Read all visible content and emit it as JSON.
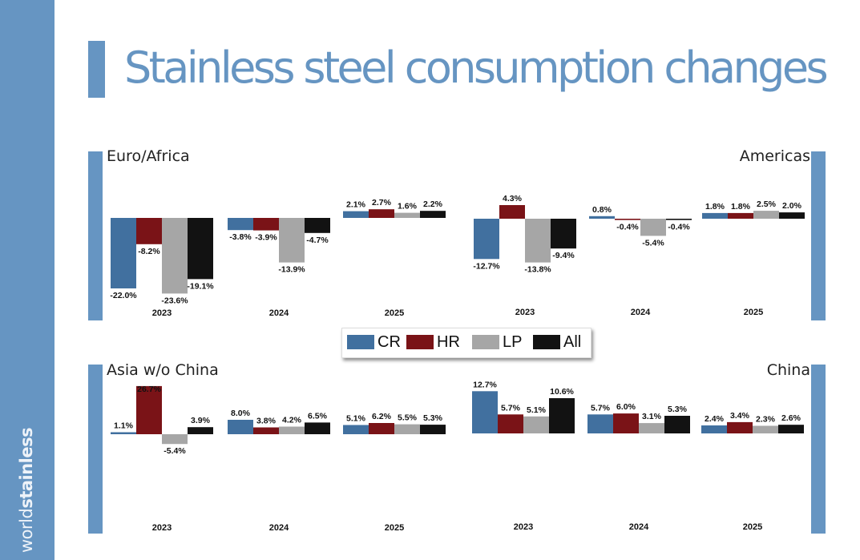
{
  "title": "Stainless steel consumption changes",
  "brand": {
    "prefix": "world",
    "suffix": "stainless"
  },
  "colors": {
    "accent": "#6695c2",
    "CR": "#41709f",
    "HR": "#7a1317",
    "LP": "#a6a6a6",
    "All": "#121212"
  },
  "legend": {
    "items": [
      {
        "key": "CR",
        "label": "CR"
      },
      {
        "key": "HR",
        "label": "HR"
      },
      {
        "key": "LP",
        "label": "LP"
      },
      {
        "key": "All",
        "label": "All"
      }
    ]
  },
  "panels": [
    {
      "name": "Euro/Africa"
    },
    {
      "name": "Americas"
    },
    {
      "name": "Asia w/o China"
    },
    {
      "name": "China"
    }
  ],
  "chart_data": [
    {
      "type": "bar",
      "title": "Euro/Africa",
      "categories": [
        "2023",
        "2024",
        "2025"
      ],
      "series_names": [
        "CR",
        "HR",
        "LP",
        "All"
      ],
      "values": [
        [
          -22.0,
          -8.2,
          -23.6,
          -19.1
        ],
        [
          -3.8,
          -3.9,
          -13.9,
          -4.7
        ],
        [
          2.1,
          2.7,
          1.6,
          2.2
        ]
      ],
      "labels": [
        [
          "-22.0%",
          "-8.2%",
          "-23.6%",
          "-19.1%"
        ],
        [
          "-3.8%",
          "-3.9%",
          "-13.9%",
          "-4.7%"
        ],
        [
          "2.1%",
          "2.7%",
          "1.6%",
          "2.2%"
        ]
      ]
    },
    {
      "type": "bar",
      "title": "Americas",
      "categories": [
        "2023",
        "2024",
        "2025"
      ],
      "series_names": [
        "CR",
        "HR",
        "LP",
        "All"
      ],
      "values": [
        [
          -12.7,
          4.3,
          -13.8,
          -9.4
        ],
        [
          0.8,
          -0.4,
          -5.4,
          -0.4
        ],
        [
          1.8,
          1.8,
          2.5,
          2.0
        ]
      ],
      "labels": [
        [
          "-12.7%",
          "4.3%",
          "-13.8%",
          "-9.4%"
        ],
        [
          "0.8%",
          "-0.4%",
          "-5.4%",
          "-0.4%"
        ],
        [
          "1.8%",
          "1.8%",
          "2.5%",
          "2.0%"
        ]
      ]
    },
    {
      "type": "bar",
      "title": "Asia w/o China",
      "categories": [
        "2023",
        "2024",
        "2025"
      ],
      "series_names": [
        "CR",
        "HR",
        "LP",
        "All"
      ],
      "values": [
        [
          1.1,
          26.7,
          -5.4,
          3.9
        ],
        [
          8.0,
          3.8,
          4.2,
          6.5
        ],
        [
          5.1,
          6.2,
          5.5,
          5.3
        ]
      ],
      "labels": [
        [
          "1.1%",
          "26.7%",
          "-5.4%",
          "3.9%"
        ],
        [
          "8.0%",
          "3.8%",
          "4.2%",
          "6.5%"
        ],
        [
          "5.1%",
          "6.2%",
          "5.5%",
          "5.3%"
        ]
      ]
    },
    {
      "type": "bar",
      "title": "China",
      "categories": [
        "2023",
        "2024",
        "2025"
      ],
      "series_names": [
        "CR",
        "HR",
        "LP",
        "All"
      ],
      "values": [
        [
          12.7,
          5.7,
          5.1,
          10.6
        ],
        [
          5.7,
          6.0,
          3.1,
          5.3
        ],
        [
          2.4,
          3.4,
          2.3,
          2.6
        ]
      ],
      "labels": [
        [
          "12.7%",
          "5.7%",
          "5.1%",
          "10.6%"
        ],
        [
          "5.7%",
          "6.0%",
          "3.1%",
          "5.3%"
        ],
        [
          "2.4%",
          "3.4%",
          "2.3%",
          "2.6%"
        ]
      ]
    }
  ]
}
